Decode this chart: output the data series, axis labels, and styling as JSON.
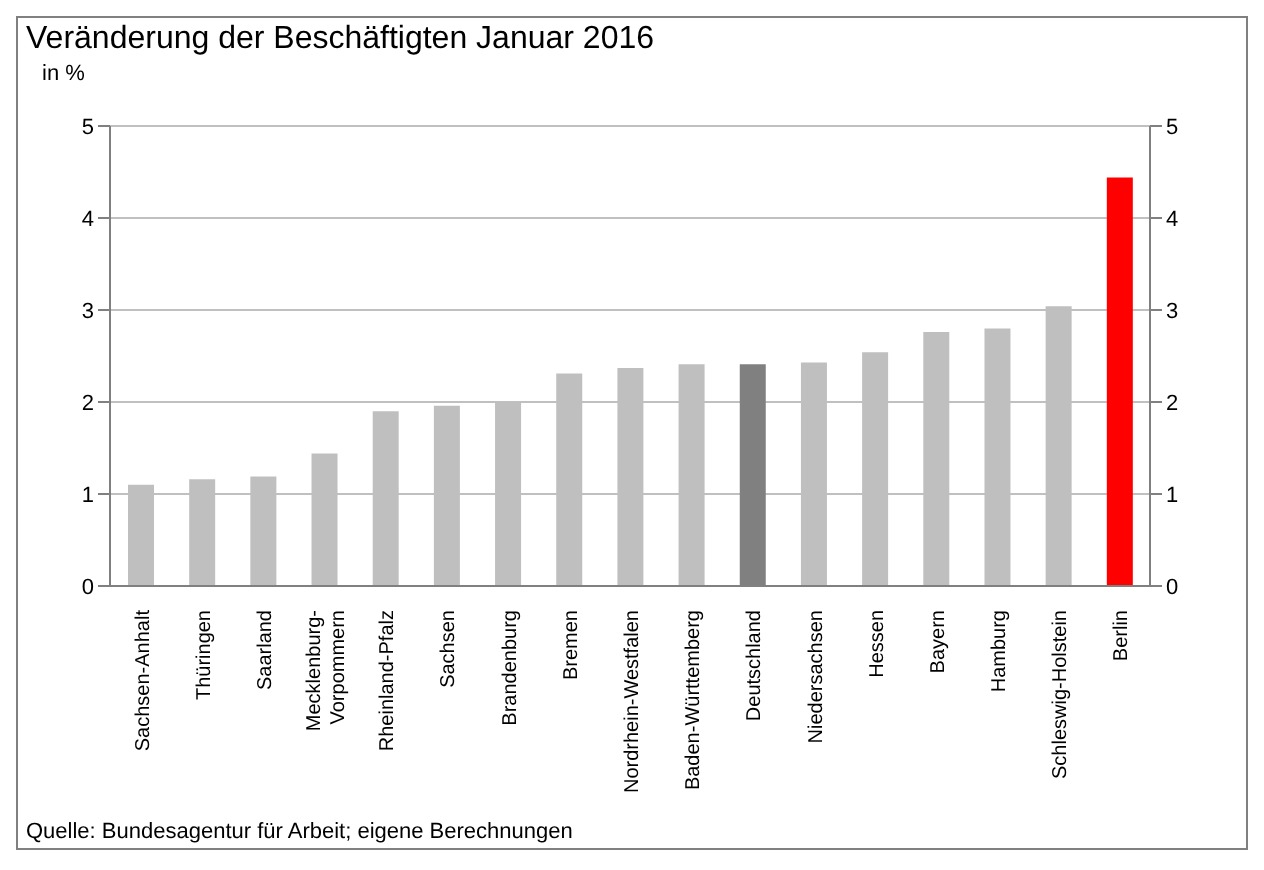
{
  "chart_data": {
    "type": "bar",
    "title": "Veränderung der Beschäftigten Januar 2016",
    "ylabel": "in %",
    "categories": [
      "Sachsen-Anhalt",
      "Thüringen",
      "Saarland",
      "Mecklenburg-Vorpommern",
      "Rheinland-Pfalz",
      "Sachsen",
      "Brandenburg",
      "Bremen",
      "Nordrhein-Westfalen",
      "Baden-Württemberg",
      "Deutschland",
      "Niedersachsen",
      "Hessen",
      "Bayern",
      "Hamburg",
      "Schleswig-Holstein",
      "Berlin"
    ],
    "values": [
      1.1,
      1.16,
      1.19,
      1.44,
      1.9,
      1.96,
      2.0,
      2.31,
      2.37,
      2.41,
      2.41,
      2.43,
      2.54,
      2.76,
      2.8,
      3.04,
      4.44
    ],
    "colors": [
      "#bfbfbf",
      "#bfbfbf",
      "#bfbfbf",
      "#bfbfbf",
      "#bfbfbf",
      "#bfbfbf",
      "#bfbfbf",
      "#bfbfbf",
      "#bfbfbf",
      "#bfbfbf",
      "#808080",
      "#bfbfbf",
      "#bfbfbf",
      "#bfbfbf",
      "#bfbfbf",
      "#bfbfbf",
      "#ff0000"
    ],
    "ylim": [
      0,
      5
    ],
    "yticks": [
      0,
      1,
      2,
      3,
      4,
      5
    ],
    "y2lim": [
      0,
      5
    ],
    "y2ticks": [
      0,
      1,
      2,
      3,
      4,
      5
    ],
    "grid": "y",
    "annotations": [
      "Quelle: Bundesagentur für Arbeit; eigene Berechnungen"
    ]
  }
}
